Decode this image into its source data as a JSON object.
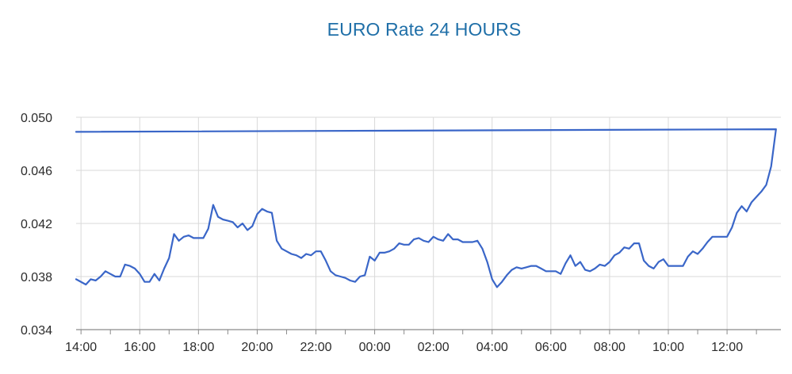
{
  "colors": {
    "title": "#1f6fa8",
    "line": "#3a66c8",
    "grid": "#d9d9d9",
    "axis": "#8a8a8a",
    "tick_text": "#2b2b2b",
    "background": "#ffffff"
  },
  "chart_data": {
    "type": "line",
    "title": "EURO Rate 24 HOURS",
    "xlabel": "",
    "ylabel": "",
    "grid": true,
    "legend": "none",
    "ylim": [
      0.034,
      0.05
    ],
    "y_ticks": [
      "0.034",
      "0.038",
      "0.042",
      "0.046",
      "0.050"
    ],
    "x_range": [
      "13:50",
      "13:50"
    ],
    "x_ticks": [
      "14:00",
      "16:00",
      "18:00",
      "20:00",
      "22:00",
      "00:00",
      "02:00",
      "04:00",
      "06:00",
      "08:00",
      "10:00",
      "12:00"
    ],
    "series": [
      {
        "x": [
          "13:50",
          "14:10",
          "14:20",
          "14:30",
          "14:40",
          "14:50",
          "15:00",
          "15:10",
          "15:20",
          "15:30",
          "15:40",
          "15:50",
          "16:00",
          "16:10",
          "16:20",
          "16:30",
          "16:40",
          "16:50",
          "17:00",
          "17:10",
          "17:20",
          "17:30",
          "17:40",
          "17:50",
          "18:00",
          "18:10",
          "18:20",
          "18:30",
          "18:40",
          "18:50",
          "19:00",
          "19:10",
          "19:20",
          "19:30",
          "19:40",
          "19:50",
          "20:00",
          "20:10",
          "20:20",
          "20:30",
          "20:40",
          "20:50",
          "21:00",
          "21:10",
          "21:20",
          "21:30",
          "21:40",
          "21:50",
          "22:00",
          "22:10",
          "22:20",
          "22:30",
          "22:40",
          "22:50",
          "23:00",
          "23:10",
          "23:20",
          "23:30",
          "23:40",
          "23:50",
          "00:00",
          "00:10",
          "00:20",
          "00:30",
          "00:40",
          "00:50",
          "01:00",
          "01:10",
          "01:20",
          "01:30",
          "01:40",
          "01:50",
          "02:00",
          "02:10",
          "02:20",
          "02:30",
          "02:40",
          "02:50",
          "03:00",
          "03:10",
          "03:20",
          "03:30",
          "03:40",
          "03:50",
          "04:00",
          "04:10",
          "04:20",
          "04:30",
          "04:40",
          "04:50",
          "05:00",
          "05:10",
          "05:20",
          "05:30",
          "05:40",
          "05:50",
          "06:00",
          "06:10",
          "06:20",
          "06:30",
          "06:40",
          "06:50",
          "07:00",
          "07:10",
          "07:20",
          "07:30",
          "07:40",
          "07:50",
          "08:00",
          "08:10",
          "08:20",
          "08:30",
          "08:40",
          "08:50",
          "09:00",
          "09:10",
          "09:20",
          "09:30",
          "09:40",
          "09:50",
          "10:00",
          "10:10",
          "10:20",
          "10:30",
          "10:40",
          "10:50",
          "11:00",
          "11:10",
          "11:20",
          "11:30",
          "11:40",
          "11:50",
          "12:00",
          "12:10",
          "12:20",
          "12:30",
          "12:40",
          "12:50",
          "13:00",
          "13:10",
          "13:20",
          "13:30",
          "13:40",
          "13:50"
        ],
        "y": [
          0.0378,
          0.0374,
          0.0378,
          0.0377,
          0.038,
          0.0384,
          0.0382,
          0.038,
          0.038,
          0.0389,
          0.0388,
          0.0386,
          0.0382,
          0.0376,
          0.0376,
          0.0382,
          0.0377,
          0.0386,
          0.0394,
          0.0412,
          0.0407,
          0.041,
          0.0411,
          0.0409,
          0.0409,
          0.0409,
          0.0416,
          0.0434,
          0.0425,
          0.0423,
          0.0422,
          0.0421,
          0.0417,
          0.042,
          0.0415,
          0.0418,
          0.0427,
          0.0431,
          0.0429,
          0.0428,
          0.0407,
          0.0401,
          0.0399,
          0.0397,
          0.0396,
          0.0394,
          0.0397,
          0.0396,
          0.0399,
          0.0399,
          0.0392,
          0.0384,
          0.0381,
          0.038,
          0.0379,
          0.0377,
          0.0376,
          0.038,
          0.0381,
          0.0395,
          0.0392,
          0.0398,
          0.0398,
          0.0399,
          0.0401,
          0.0405,
          0.0404,
          0.0404,
          0.0408,
          0.0409,
          0.0407,
          0.0406,
          0.041,
          0.0408,
          0.0407,
          0.0412,
          0.0408,
          0.0408,
          0.0406,
          0.0406,
          0.0406,
          0.0407,
          0.0401,
          0.0391,
          0.0378,
          0.0372,
          0.0376,
          0.0381,
          0.0385,
          0.0387,
          0.0386,
          0.0387,
          0.0388,
          0.0388,
          0.0386,
          0.0384,
          0.0384,
          0.0384,
          0.0382,
          0.039,
          0.0396,
          0.0388,
          0.0391,
          0.0385,
          0.0384,
          0.0386,
          0.0389,
          0.0388,
          0.0391,
          0.0396,
          0.0398,
          0.0402,
          0.0401,
          0.0405,
          0.0405,
          0.0392,
          0.0388,
          0.0386,
          0.0391,
          0.0393,
          0.0388,
          0.0388,
          0.0388,
          0.0388,
          0.0395,
          0.0399,
          0.0397,
          0.0401,
          0.0406,
          0.041,
          0.041,
          0.041,
          0.041,
          0.0417,
          0.0428,
          0.0433,
          0.0429,
          0.0436,
          0.044,
          0.0444,
          0.0449,
          0.0463,
          0.0491,
          0.0489
        ]
      }
    ]
  }
}
